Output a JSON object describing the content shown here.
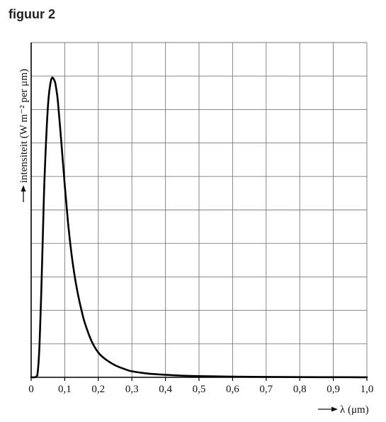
{
  "page": {
    "title": "figuur 2"
  },
  "chart_data": {
    "type": "line",
    "xlabel": "λ (μm)",
    "ylabel": "intensiteit (W m⁻² per μm)",
    "xlim": [
      0,
      1.0
    ],
    "ylim": [
      0,
      10
    ],
    "x_ticks": [
      0,
      0.1,
      0.2,
      0.3,
      0.4,
      0.5,
      0.6,
      0.7,
      0.8,
      0.9,
      1.0
    ],
    "x_tick_labels": [
      "0",
      "0,1",
      "0,2",
      "0,3",
      "0,4",
      "0,5",
      "0,6",
      "0,7",
      "0,8",
      "0,9",
      "1,0"
    ],
    "y_gridlines": 10,
    "grid": true,
    "y_tick_labels_shown": false,
    "series": [
      {
        "color": "#000000",
        "x": [
          0,
          0.015,
          0.02,
          0.025,
          0.03,
          0.035,
          0.04,
          0.05,
          0.06,
          0.07,
          0.075,
          0.08,
          0.09,
          0.1,
          0.11,
          0.12,
          0.13,
          0.14,
          0.15,
          0.16,
          0.18,
          0.2,
          0.22,
          0.25,
          0.28,
          0.3,
          0.35,
          0.4,
          0.45,
          0.5,
          0.6,
          0.7,
          0.8,
          0.9,
          1.0
        ],
        "y": [
          0,
          0.02,
          0.2,
          1.0,
          2.5,
          4.3,
          6.0,
          8.1,
          8.9,
          8.85,
          8.6,
          8.2,
          7.0,
          5.75,
          4.6,
          3.7,
          3.0,
          2.45,
          2.0,
          1.62,
          1.08,
          0.74,
          0.55,
          0.36,
          0.24,
          0.18,
          0.11,
          0.075,
          0.05,
          0.035,
          0.02,
          0.012,
          0.007,
          0.004,
          0.002
        ]
      }
    ]
  }
}
